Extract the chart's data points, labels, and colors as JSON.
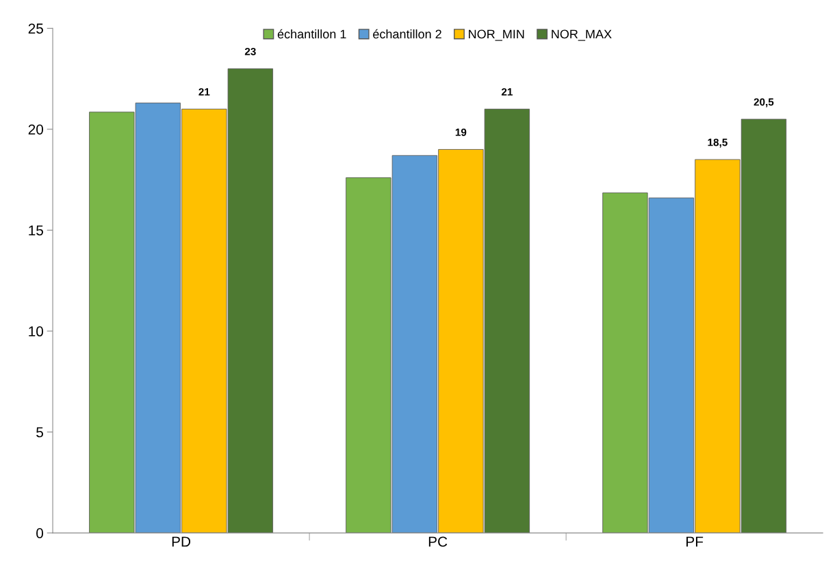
{
  "chart_data": {
    "type": "bar",
    "categories": [
      "PD",
      "PC",
      "PF"
    ],
    "series": [
      {
        "name": "échantillon 1",
        "color": "#7ab648",
        "values": [
          20.85,
          17.6,
          16.85
        ]
      },
      {
        "name": "échantillon 2",
        "color": "#5b9bd5",
        "values": [
          21.3,
          18.7,
          16.6
        ]
      },
      {
        "name": "NOR_MIN",
        "color": "#ffc000",
        "values": [
          21,
          19,
          18.5
        ],
        "value_labels": [
          "21",
          "19",
          "18,5"
        ]
      },
      {
        "name": "NOR_MAX",
        "color": "#4e7a32",
        "values": [
          23,
          21,
          20.5
        ],
        "value_labels": [
          "23",
          "21",
          "20,5"
        ]
      }
    ],
    "ylim": [
      0,
      25
    ],
    "yticks": [
      0,
      5,
      10,
      15,
      20,
      25
    ],
    "grid": false,
    "legend": "top"
  }
}
